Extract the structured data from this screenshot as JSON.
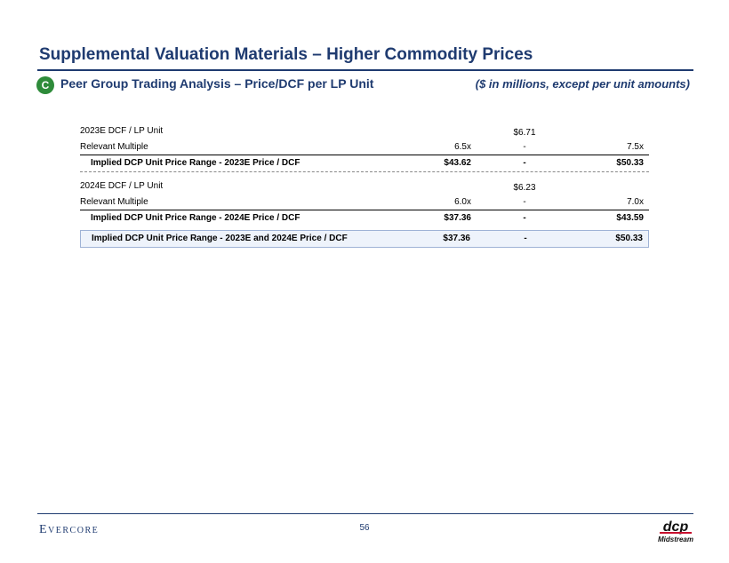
{
  "header": {
    "title": "Supplemental Valuation Materials – Higher Commodity Prices",
    "badge": "C",
    "subtitle": "Peer Group Trading Analysis – Price/DCF per LP Unit",
    "units_note": "($ in millions, except per unit amounts)"
  },
  "table": {
    "dcf_2023": {
      "label": "2023E DCF / LP Unit",
      "value": "$6.71"
    },
    "multiple_2023": {
      "label": "Relevant Multiple",
      "low": "6.5x",
      "dash": "-",
      "high": "7.5x"
    },
    "implied_2023": {
      "label": "Implied DCP Unit Price Range - 2023E Price / DCF",
      "low": "$43.62",
      "dash": "-",
      "high": "$50.33"
    },
    "dcf_2024": {
      "label": "2024E DCF / LP Unit",
      "value": "$6.23"
    },
    "multiple_2024": {
      "label": "Relevant Multiple",
      "low": "6.0x",
      "dash": "-",
      "high": "7.0x"
    },
    "implied_2024": {
      "label": "Implied DCP Unit Price Range - 2024E Price / DCF",
      "low": "$37.36",
      "dash": "-",
      "high": "$43.59"
    },
    "implied_combined": {
      "label": "Implied DCP Unit Price Range - 2023E and 2024E Price / DCF",
      "low": "$37.36",
      "dash": "-",
      "high": "$50.33"
    }
  },
  "footer": {
    "company": "Evercore",
    "page_number": "56",
    "logo_top": "dcp",
    "logo_bottom": "Midstream"
  },
  "colors": {
    "brand_navy": "#1f3b70",
    "badge_green": "#2e8b3a",
    "logo_red": "#c8102e"
  }
}
